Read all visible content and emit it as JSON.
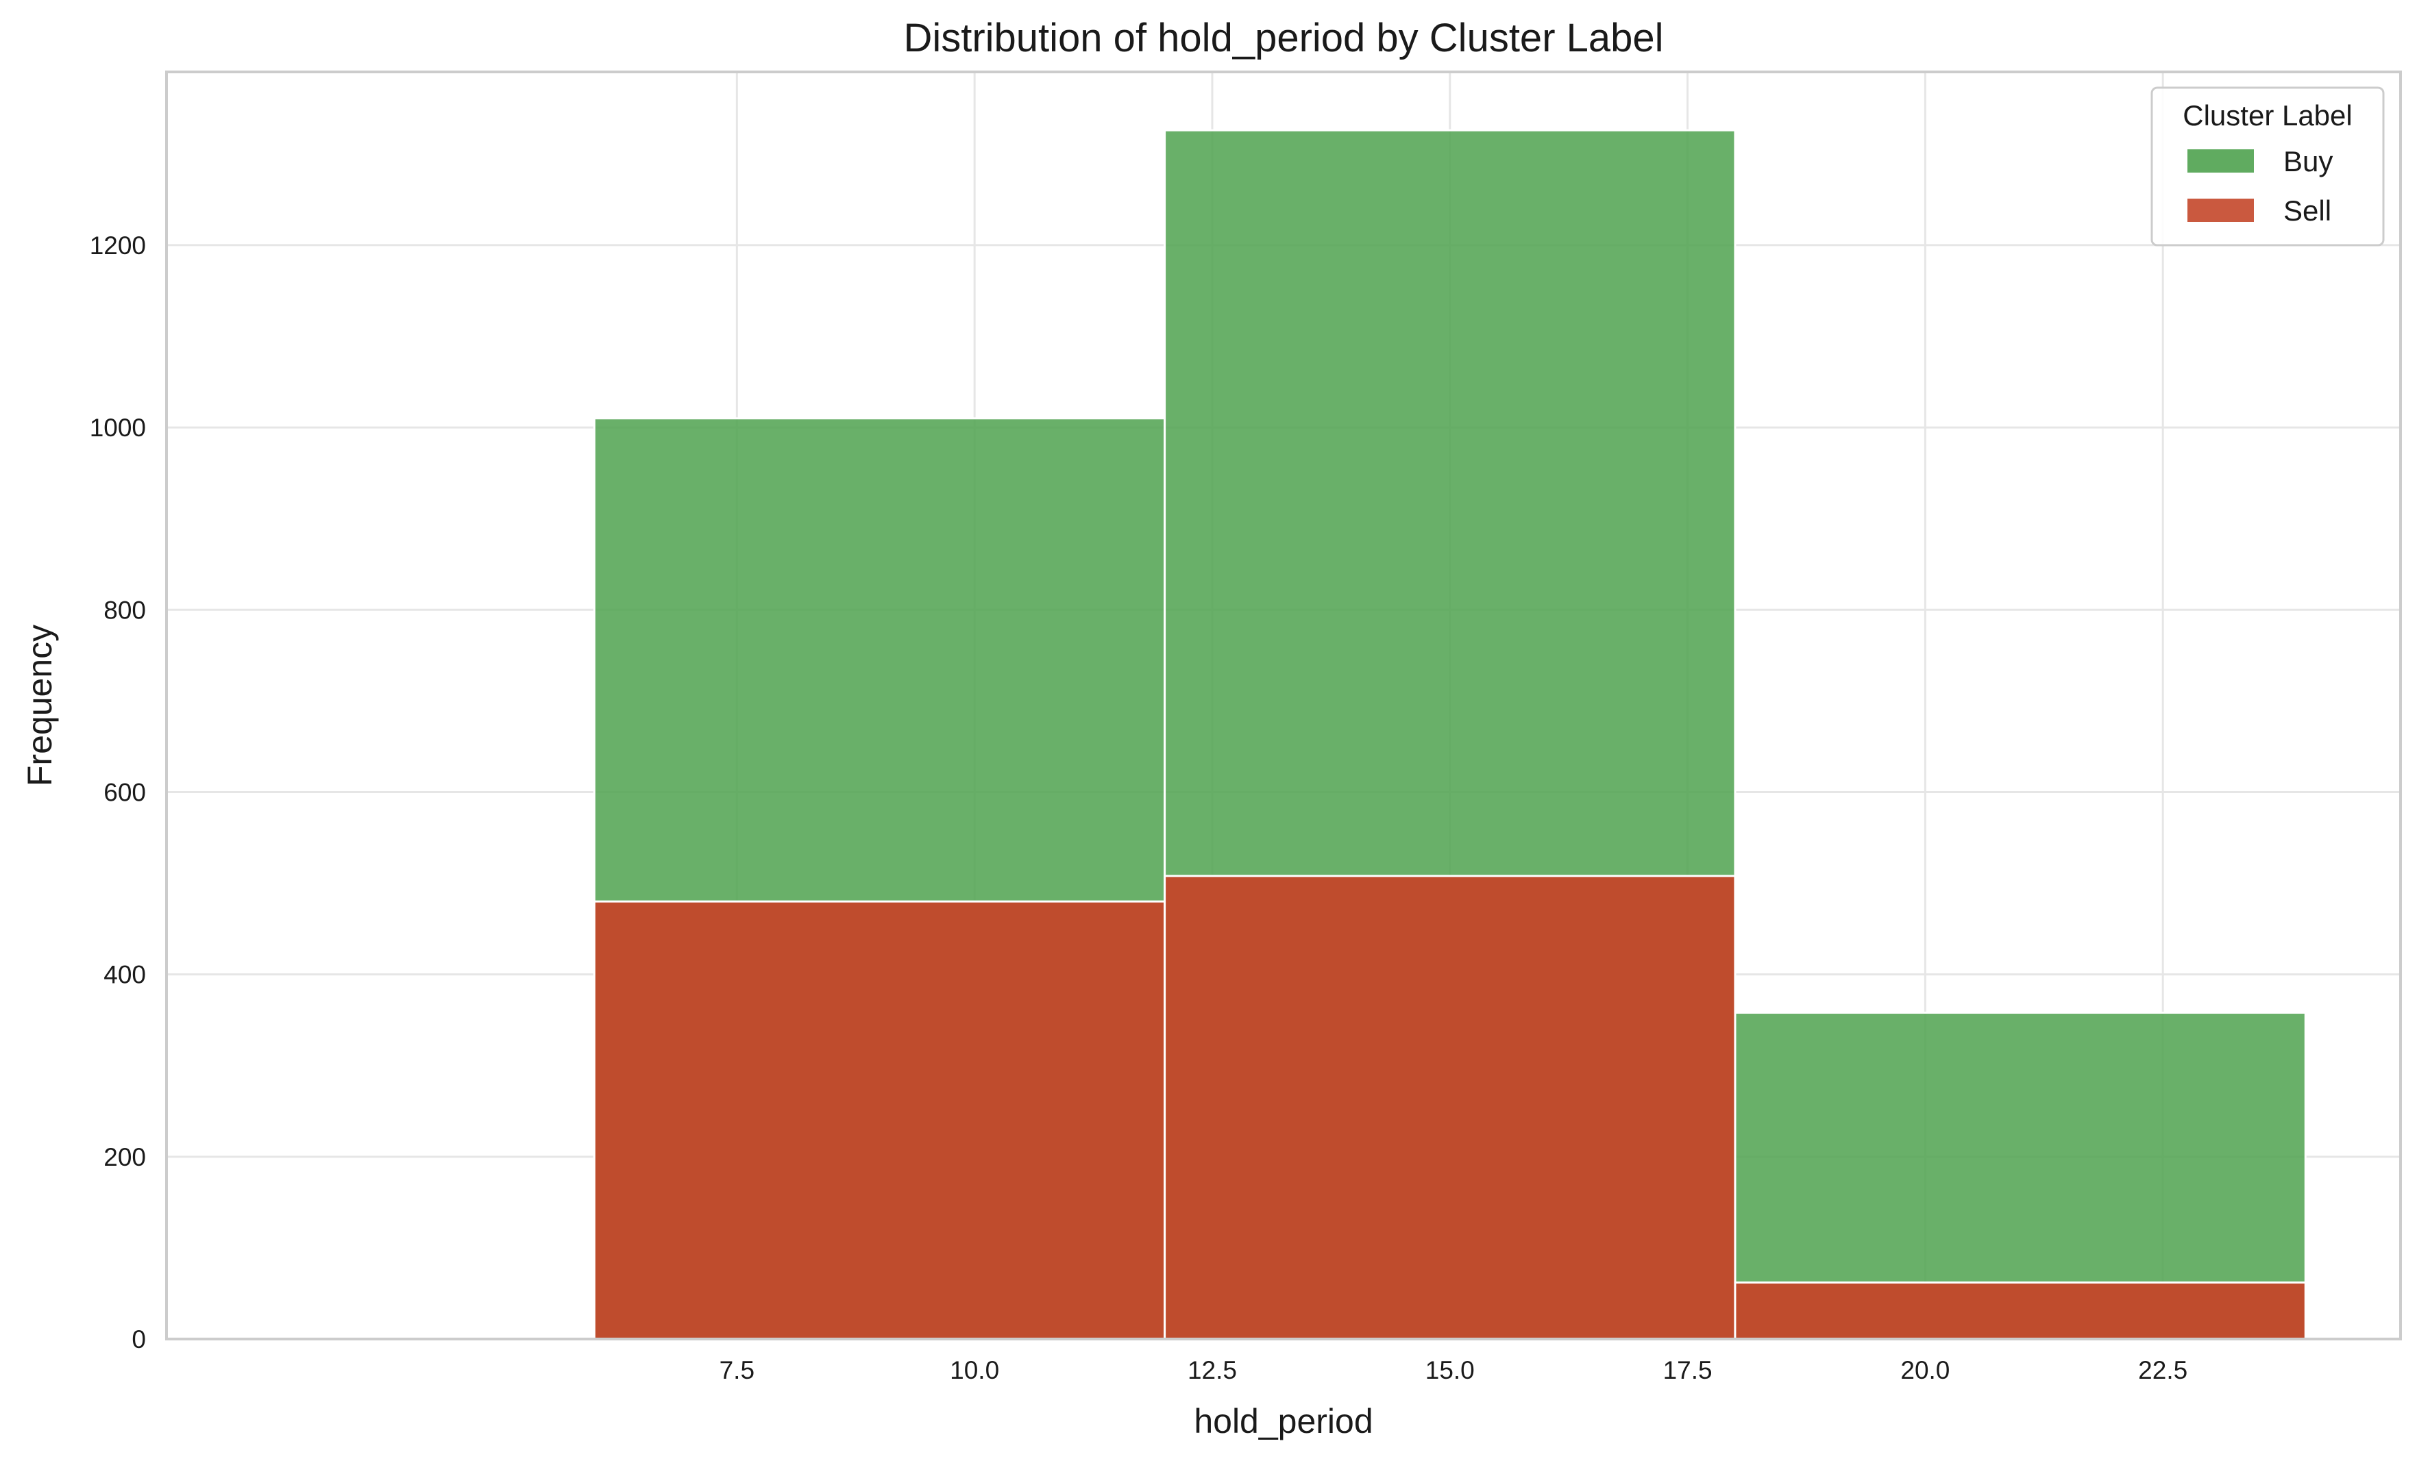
{
  "chart_data": {
    "type": "bar",
    "subtype": "overlaid histogram",
    "title": "Distribution of hold_period by Cluster Label",
    "xlabel": "hold_period",
    "ylabel": "Frequency",
    "xlim": [
      1.5,
      25
    ],
    "ylim": [
      0,
      1390
    ],
    "xticks": [
      7.5,
      10.0,
      12.5,
      15.0,
      17.5,
      20.0,
      22.5
    ],
    "xtick_labels": [
      "7.5",
      "10.0",
      "12.5",
      "15.0",
      "17.5",
      "20.0",
      "22.5"
    ],
    "yticks": [
      0,
      200,
      400,
      600,
      800,
      1000,
      1200
    ],
    "ytick_labels": [
      "0",
      "200",
      "400",
      "600",
      "800",
      "1000",
      "1200"
    ],
    "bins": [
      [
        6,
        12
      ],
      [
        12,
        18
      ],
      [
        18,
        24
      ]
    ],
    "grid": true,
    "legend": {
      "title": "Cluster Label",
      "position": "top-right"
    },
    "series": [
      {
        "name": "Buy",
        "color": "#4fa24f",
        "values": [
          1010,
          1326,
          358
        ]
      },
      {
        "name": "Sell",
        "color": "#c4472a",
        "values": [
          480,
          508,
          62
        ]
      }
    ]
  }
}
